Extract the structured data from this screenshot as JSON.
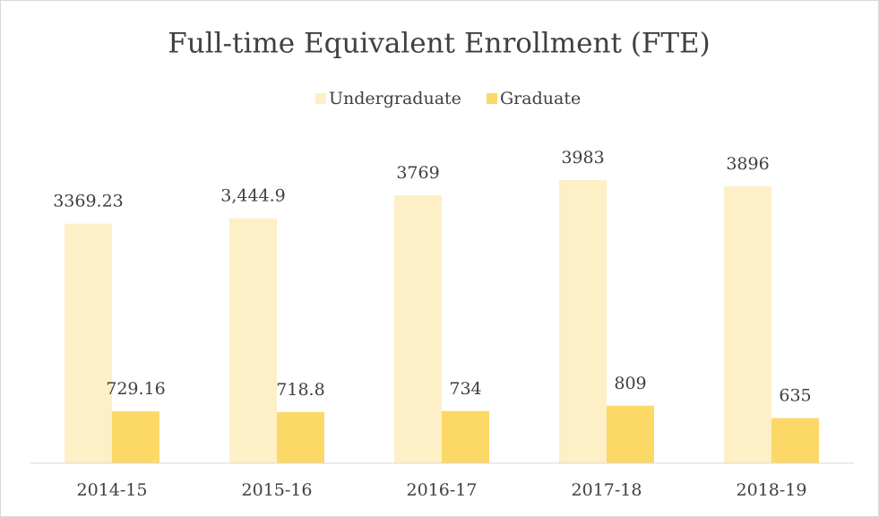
{
  "chart_data": {
    "type": "bar",
    "title": "Full-time Equivalent Enrollment (FTE)",
    "categories": [
      "2014-15",
      "2015-16",
      "2016-17",
      "2017-18",
      "2018-19"
    ],
    "series": [
      {
        "name": "Undergraduate",
        "color": "#fdefc6",
        "values": [
          3369.23,
          3444.9,
          3769,
          3983,
          3896
        ],
        "value_labels": [
          "3369.23",
          "3,444.9",
          "3769",
          "3983",
          "3896"
        ]
      },
      {
        "name": "Graduate",
        "color": "#fcd866",
        "values": [
          729.16,
          718.8,
          734,
          809,
          635
        ]
      }
    ],
    "ylim": [
      0,
      4500
    ],
    "legend": "top"
  }
}
